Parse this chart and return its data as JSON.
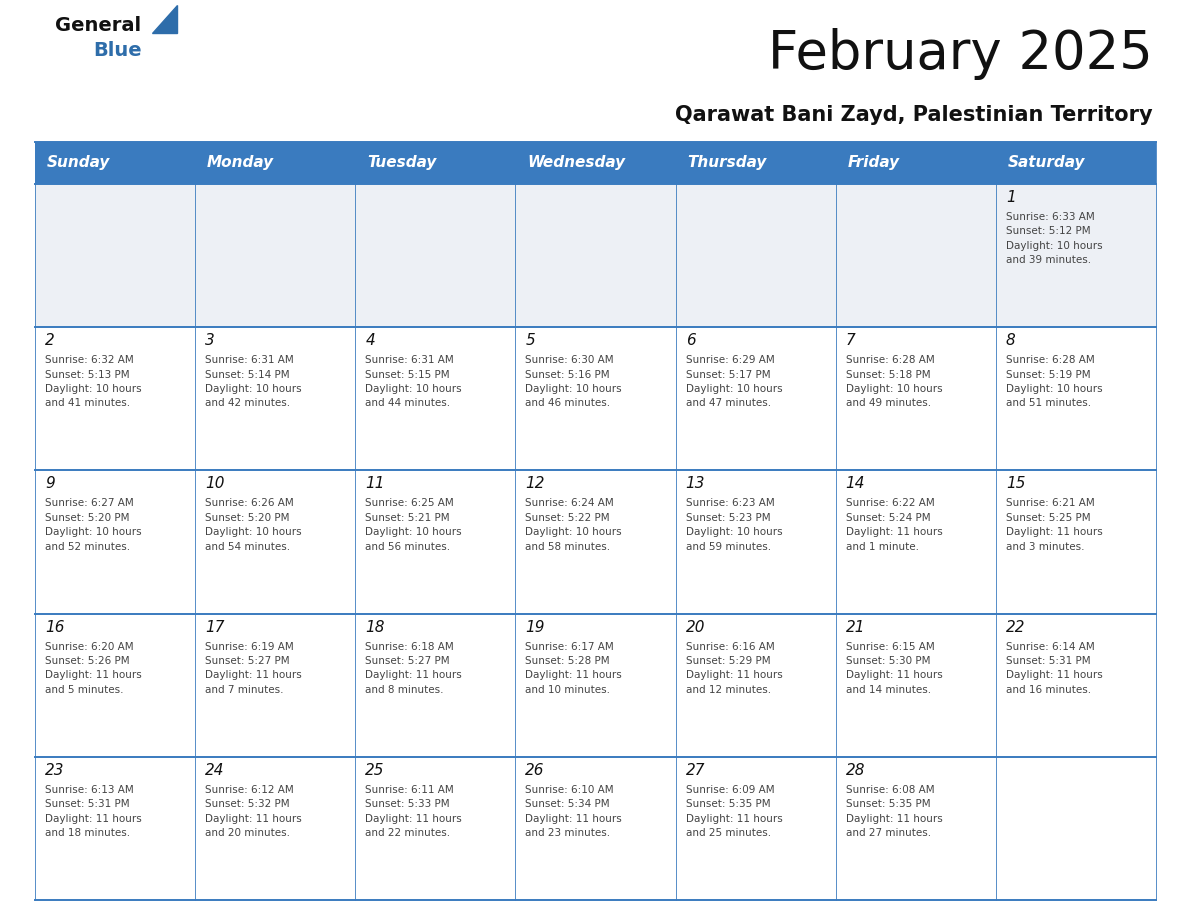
{
  "title": "February 2025",
  "subtitle": "Qarawat Bani Zayd, Palestinian Territory",
  "header_color": "#3a7bbf",
  "header_text_color": "#ffffff",
  "border_color": "#3a7bbf",
  "text_color": "#222222",
  "info_text_color": "#444444",
  "first_row_bg": "#edf0f5",
  "cell_bg": "#ffffff",
  "day_headers": [
    "Sunday",
    "Monday",
    "Tuesday",
    "Wednesday",
    "Thursday",
    "Friday",
    "Saturday"
  ],
  "weeks": [
    [
      {
        "day": null,
        "info": null
      },
      {
        "day": null,
        "info": null
      },
      {
        "day": null,
        "info": null
      },
      {
        "day": null,
        "info": null
      },
      {
        "day": null,
        "info": null
      },
      {
        "day": null,
        "info": null
      },
      {
        "day": 1,
        "info": "Sunrise: 6:33 AM\nSunset: 5:12 PM\nDaylight: 10 hours\nand 39 minutes."
      }
    ],
    [
      {
        "day": 2,
        "info": "Sunrise: 6:32 AM\nSunset: 5:13 PM\nDaylight: 10 hours\nand 41 minutes."
      },
      {
        "day": 3,
        "info": "Sunrise: 6:31 AM\nSunset: 5:14 PM\nDaylight: 10 hours\nand 42 minutes."
      },
      {
        "day": 4,
        "info": "Sunrise: 6:31 AM\nSunset: 5:15 PM\nDaylight: 10 hours\nand 44 minutes."
      },
      {
        "day": 5,
        "info": "Sunrise: 6:30 AM\nSunset: 5:16 PM\nDaylight: 10 hours\nand 46 minutes."
      },
      {
        "day": 6,
        "info": "Sunrise: 6:29 AM\nSunset: 5:17 PM\nDaylight: 10 hours\nand 47 minutes."
      },
      {
        "day": 7,
        "info": "Sunrise: 6:28 AM\nSunset: 5:18 PM\nDaylight: 10 hours\nand 49 minutes."
      },
      {
        "day": 8,
        "info": "Sunrise: 6:28 AM\nSunset: 5:19 PM\nDaylight: 10 hours\nand 51 minutes."
      }
    ],
    [
      {
        "day": 9,
        "info": "Sunrise: 6:27 AM\nSunset: 5:20 PM\nDaylight: 10 hours\nand 52 minutes."
      },
      {
        "day": 10,
        "info": "Sunrise: 6:26 AM\nSunset: 5:20 PM\nDaylight: 10 hours\nand 54 minutes."
      },
      {
        "day": 11,
        "info": "Sunrise: 6:25 AM\nSunset: 5:21 PM\nDaylight: 10 hours\nand 56 minutes."
      },
      {
        "day": 12,
        "info": "Sunrise: 6:24 AM\nSunset: 5:22 PM\nDaylight: 10 hours\nand 58 minutes."
      },
      {
        "day": 13,
        "info": "Sunrise: 6:23 AM\nSunset: 5:23 PM\nDaylight: 10 hours\nand 59 minutes."
      },
      {
        "day": 14,
        "info": "Sunrise: 6:22 AM\nSunset: 5:24 PM\nDaylight: 11 hours\nand 1 minute."
      },
      {
        "day": 15,
        "info": "Sunrise: 6:21 AM\nSunset: 5:25 PM\nDaylight: 11 hours\nand 3 minutes."
      }
    ],
    [
      {
        "day": 16,
        "info": "Sunrise: 6:20 AM\nSunset: 5:26 PM\nDaylight: 11 hours\nand 5 minutes."
      },
      {
        "day": 17,
        "info": "Sunrise: 6:19 AM\nSunset: 5:27 PM\nDaylight: 11 hours\nand 7 minutes."
      },
      {
        "day": 18,
        "info": "Sunrise: 6:18 AM\nSunset: 5:27 PM\nDaylight: 11 hours\nand 8 minutes."
      },
      {
        "day": 19,
        "info": "Sunrise: 6:17 AM\nSunset: 5:28 PM\nDaylight: 11 hours\nand 10 minutes."
      },
      {
        "day": 20,
        "info": "Sunrise: 6:16 AM\nSunset: 5:29 PM\nDaylight: 11 hours\nand 12 minutes."
      },
      {
        "day": 21,
        "info": "Sunrise: 6:15 AM\nSunset: 5:30 PM\nDaylight: 11 hours\nand 14 minutes."
      },
      {
        "day": 22,
        "info": "Sunrise: 6:14 AM\nSunset: 5:31 PM\nDaylight: 11 hours\nand 16 minutes."
      }
    ],
    [
      {
        "day": 23,
        "info": "Sunrise: 6:13 AM\nSunset: 5:31 PM\nDaylight: 11 hours\nand 18 minutes."
      },
      {
        "day": 24,
        "info": "Sunrise: 6:12 AM\nSunset: 5:32 PM\nDaylight: 11 hours\nand 20 minutes."
      },
      {
        "day": 25,
        "info": "Sunrise: 6:11 AM\nSunset: 5:33 PM\nDaylight: 11 hours\nand 22 minutes."
      },
      {
        "day": 26,
        "info": "Sunrise: 6:10 AM\nSunset: 5:34 PM\nDaylight: 11 hours\nand 23 minutes."
      },
      {
        "day": 27,
        "info": "Sunrise: 6:09 AM\nSunset: 5:35 PM\nDaylight: 11 hours\nand 25 minutes."
      },
      {
        "day": 28,
        "info": "Sunrise: 6:08 AM\nSunset: 5:35 PM\nDaylight: 11 hours\nand 27 minutes."
      },
      {
        "day": null,
        "info": null
      }
    ]
  ],
  "figwidth": 11.88,
  "figheight": 9.18,
  "dpi": 100
}
